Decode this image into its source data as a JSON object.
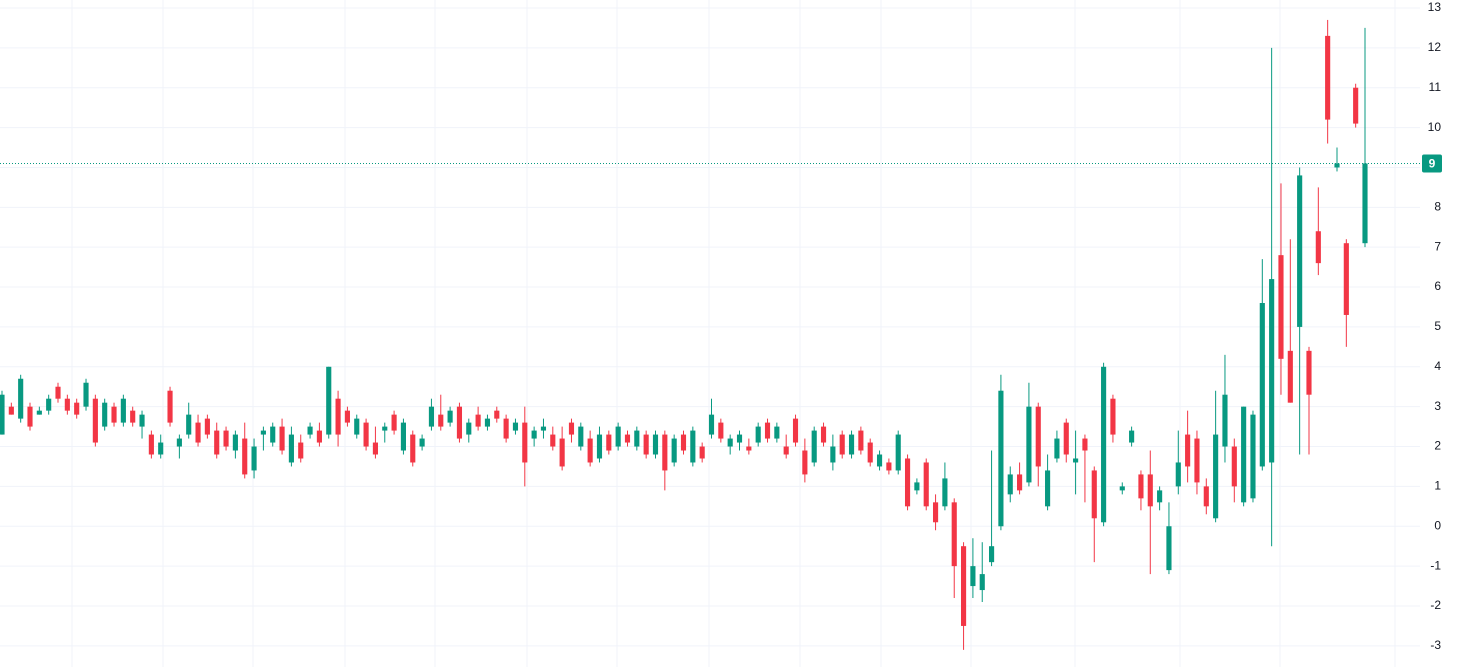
{
  "chart_data": {
    "type": "candlestick",
    "up_color": "#089981",
    "down_color": "#f23645",
    "ylim": [
      -3.53,
      13.2
    ],
    "yticks": [
      -3,
      -2,
      -1,
      0,
      1,
      2,
      3,
      4,
      5,
      6,
      7,
      8,
      9,
      10,
      11,
      12,
      13
    ],
    "grid": true,
    "price_line": {
      "value": 9.1,
      "label": "9"
    },
    "candles": [
      [
        2.3,
        3.4,
        2.3,
        3.3
      ],
      [
        3.0,
        3.1,
        2.8,
        2.8
      ],
      [
        2.7,
        3.8,
        2.6,
        3.7
      ],
      [
        3.0,
        3.1,
        2.4,
        2.5
      ],
      [
        2.8,
        3.0,
        2.8,
        2.9
      ],
      [
        2.9,
        3.3,
        2.8,
        3.2
      ],
      [
        3.5,
        3.6,
        3.1,
        3.2
      ],
      [
        3.2,
        3.3,
        2.8,
        2.9
      ],
      [
        3.1,
        3.2,
        2.7,
        2.8
      ],
      [
        3.0,
        3.7,
        2.9,
        3.6
      ],
      [
        3.2,
        3.3,
        2.0,
        2.1
      ],
      [
        2.5,
        3.2,
        2.4,
        3.1
      ],
      [
        3.0,
        3.1,
        2.5,
        2.6
      ],
      [
        2.6,
        3.3,
        2.5,
        3.2
      ],
      [
        2.9,
        3.0,
        2.5,
        2.6
      ],
      [
        2.5,
        2.9,
        2.2,
        2.8
      ],
      [
        2.3,
        2.4,
        1.7,
        1.8
      ],
      [
        1.8,
        2.3,
        1.7,
        2.1
      ],
      [
        3.4,
        3.5,
        2.5,
        2.6
      ],
      [
        2.0,
        2.3,
        1.7,
        2.2
      ],
      [
        2.3,
        3.1,
        2.2,
        2.8
      ],
      [
        2.6,
        2.8,
        2.0,
        2.1
      ],
      [
        2.7,
        2.8,
        2.2,
        2.3
      ],
      [
        2.4,
        2.6,
        1.7,
        1.8
      ],
      [
        2.4,
        2.5,
        1.9,
        2.0
      ],
      [
        1.9,
        2.4,
        1.7,
        2.3
      ],
      [
        2.2,
        2.6,
        1.2,
        1.3
      ],
      [
        1.4,
        2.2,
        1.2,
        2.0
      ],
      [
        2.3,
        2.5,
        1.9,
        2.4
      ],
      [
        2.1,
        2.6,
        2.0,
        2.5
      ],
      [
        2.5,
        2.7,
        1.8,
        1.9
      ],
      [
        1.6,
        2.5,
        1.5,
        2.3
      ],
      [
        2.1,
        2.3,
        1.6,
        1.7
      ],
      [
        2.3,
        2.6,
        2.2,
        2.5
      ],
      [
        2.4,
        2.6,
        2.0,
        2.1
      ],
      [
        2.3,
        4.0,
        2.2,
        4.0
      ],
      [
        3.2,
        3.4,
        2.0,
        2.3
      ],
      [
        2.9,
        3.0,
        2.5,
        2.6
      ],
      [
        2.3,
        2.8,
        2.2,
        2.7
      ],
      [
        2.6,
        2.7,
        1.9,
        2.0
      ],
      [
        2.1,
        2.5,
        1.7,
        1.8
      ],
      [
        2.4,
        2.6,
        2.1,
        2.5
      ],
      [
        2.8,
        2.9,
        2.3,
        2.4
      ],
      [
        1.9,
        2.7,
        1.8,
        2.6
      ],
      [
        2.3,
        2.4,
        1.5,
        1.6
      ],
      [
        2.0,
        2.3,
        1.9,
        2.2
      ],
      [
        2.5,
        3.2,
        2.4,
        3.0
      ],
      [
        2.8,
        3.3,
        2.4,
        2.5
      ],
      [
        2.6,
        3.0,
        2.5,
        2.9
      ],
      [
        3.0,
        3.1,
        2.1,
        2.2
      ],
      [
        2.3,
        2.7,
        2.1,
        2.6
      ],
      [
        2.8,
        3.0,
        2.4,
        2.5
      ],
      [
        2.5,
        2.8,
        2.4,
        2.7
      ],
      [
        2.9,
        3.0,
        2.6,
        2.7
      ],
      [
        2.7,
        2.8,
        2.1,
        2.2
      ],
      [
        2.4,
        2.7,
        2.3,
        2.6
      ],
      [
        2.6,
        3.0,
        1.0,
        1.6
      ],
      [
        2.2,
        2.5,
        2.0,
        2.4
      ],
      [
        2.4,
        2.7,
        2.2,
        2.5
      ],
      [
        2.3,
        2.5,
        1.9,
        2.0
      ],
      [
        2.2,
        2.5,
        1.4,
        1.5
      ],
      [
        2.6,
        2.7,
        2.1,
        2.3
      ],
      [
        2.0,
        2.6,
        1.9,
        2.5
      ],
      [
        2.2,
        2.4,
        1.5,
        1.6
      ],
      [
        1.7,
        2.5,
        1.6,
        2.3
      ],
      [
        2.3,
        2.4,
        1.8,
        1.9
      ],
      [
        2.0,
        2.6,
        1.9,
        2.5
      ],
      [
        2.3,
        2.4,
        2.0,
        2.1
      ],
      [
        2.0,
        2.5,
        1.9,
        2.4
      ],
      [
        2.3,
        2.4,
        1.7,
        1.8
      ],
      [
        1.8,
        2.4,
        1.7,
        2.3
      ],
      [
        2.3,
        2.4,
        0.9,
        1.4
      ],
      [
        1.6,
        2.3,
        1.5,
        2.2
      ],
      [
        2.3,
        2.4,
        1.8,
        1.9
      ],
      [
        1.6,
        2.5,
        1.5,
        2.4
      ],
      [
        2.0,
        2.1,
        1.6,
        1.7
      ],
      [
        2.3,
        3.2,
        2.2,
        2.8
      ],
      [
        2.6,
        2.7,
        2.1,
        2.2
      ],
      [
        2.0,
        2.3,
        1.8,
        2.2
      ],
      [
        2.1,
        2.4,
        1.9,
        2.3
      ],
      [
        2.0,
        2.2,
        1.8,
        1.9
      ],
      [
        2.1,
        2.6,
        2.0,
        2.5
      ],
      [
        2.6,
        2.7,
        2.1,
        2.2
      ],
      [
        2.2,
        2.6,
        2.1,
        2.5
      ],
      [
        2.0,
        2.3,
        1.7,
        1.8
      ],
      [
        2.7,
        2.8,
        2.0,
        2.1
      ],
      [
        1.9,
        2.2,
        1.1,
        1.3
      ],
      [
        1.6,
        2.5,
        1.5,
        2.4
      ],
      [
        2.5,
        2.6,
        2.0,
        2.1
      ],
      [
        1.6,
        2.3,
        1.4,
        2.0
      ],
      [
        2.3,
        2.4,
        1.7,
        1.8
      ],
      [
        1.8,
        2.4,
        1.7,
        2.3
      ],
      [
        2.4,
        2.5,
        1.8,
        1.9
      ],
      [
        2.1,
        2.2,
        1.5,
        1.6
      ],
      [
        1.5,
        1.9,
        1.4,
        1.8
      ],
      [
        1.6,
        1.7,
        1.3,
        1.4
      ],
      [
        1.4,
        2.4,
        1.3,
        2.3
      ],
      [
        1.7,
        1.8,
        0.4,
        0.5
      ],
      [
        0.9,
        1.2,
        0.8,
        1.1
      ],
      [
        1.6,
        1.7,
        0.4,
        0.5
      ],
      [
        0.6,
        0.8,
        -0.1,
        0.1
      ],
      [
        0.5,
        1.6,
        0.4,
        1.2
      ],
      [
        0.6,
        0.7,
        -1.8,
        -1.0
      ],
      [
        -0.5,
        -0.4,
        -3.1,
        -2.5
      ],
      [
        -1.5,
        -0.3,
        -1.8,
        -1.0
      ],
      [
        -1.6,
        -0.4,
        -1.9,
        -1.2
      ],
      [
        -0.9,
        1.9,
        -1.0,
        -0.5
      ],
      [
        0.0,
        3.8,
        -0.1,
        3.4
      ],
      [
        0.8,
        1.5,
        0.6,
        1.3
      ],
      [
        1.3,
        1.6,
        0.8,
        0.9
      ],
      [
        1.1,
        3.6,
        1.0,
        3.0
      ],
      [
        3.0,
        3.1,
        1.0,
        1.5
      ],
      [
        0.5,
        1.8,
        0.4,
        1.4
      ],
      [
        1.7,
        2.4,
        1.6,
        2.2
      ],
      [
        2.6,
        2.7,
        1.6,
        1.8
      ],
      [
        1.6,
        2.4,
        0.8,
        1.7
      ],
      [
        2.2,
        2.3,
        0.6,
        1.9
      ],
      [
        1.4,
        1.5,
        -0.9,
        0.2
      ],
      [
        0.1,
        4.1,
        0.0,
        4.0
      ],
      [
        3.2,
        3.3,
        2.1,
        2.3
      ],
      [
        0.9,
        1.1,
        0.8,
        1.0
      ],
      [
        2.1,
        2.5,
        2.0,
        2.4
      ],
      [
        1.3,
        1.4,
        0.4,
        0.7
      ],
      [
        1.3,
        1.9,
        -1.2,
        0.5
      ],
      [
        0.6,
        1.0,
        0.4,
        0.9
      ],
      [
        -1.1,
        0.6,
        -1.2,
        0.0
      ],
      [
        1.0,
        2.4,
        0.8,
        1.6
      ],
      [
        2.3,
        2.9,
        1.1,
        1.5
      ],
      [
        2.2,
        2.4,
        0.8,
        1.1
      ],
      [
        1.0,
        1.2,
        0.3,
        0.5
      ],
      [
        0.2,
        3.4,
        0.1,
        2.3
      ],
      [
        2.0,
        4.3,
        1.6,
        3.3
      ],
      [
        2.0,
        2.2,
        0.6,
        1.0
      ],
      [
        0.6,
        3.0,
        0.5,
        3.0
      ],
      [
        0.7,
        2.9,
        0.6,
        2.8
      ],
      [
        1.5,
        6.7,
        1.4,
        5.6
      ],
      [
        1.6,
        12.0,
        -0.5,
        6.2
      ],
      [
        6.8,
        8.6,
        3.3,
        4.2
      ],
      [
        4.4,
        7.2,
        3.1,
        3.1
      ],
      [
        5.0,
        9.0,
        1.8,
        8.8
      ],
      [
        4.4,
        4.5,
        1.8,
        3.3
      ],
      [
        7.4,
        8.5,
        6.3,
        6.6
      ],
      [
        12.3,
        12.7,
        9.6,
        10.2
      ],
      [
        9.0,
        9.5,
        8.9,
        9.1
      ],
      [
        7.1,
        7.2,
        4.5,
        5.3
      ],
      [
        11.0,
        11.1,
        10.0,
        10.1
      ],
      [
        7.1,
        12.5,
        7.0,
        9.1
      ]
    ]
  }
}
